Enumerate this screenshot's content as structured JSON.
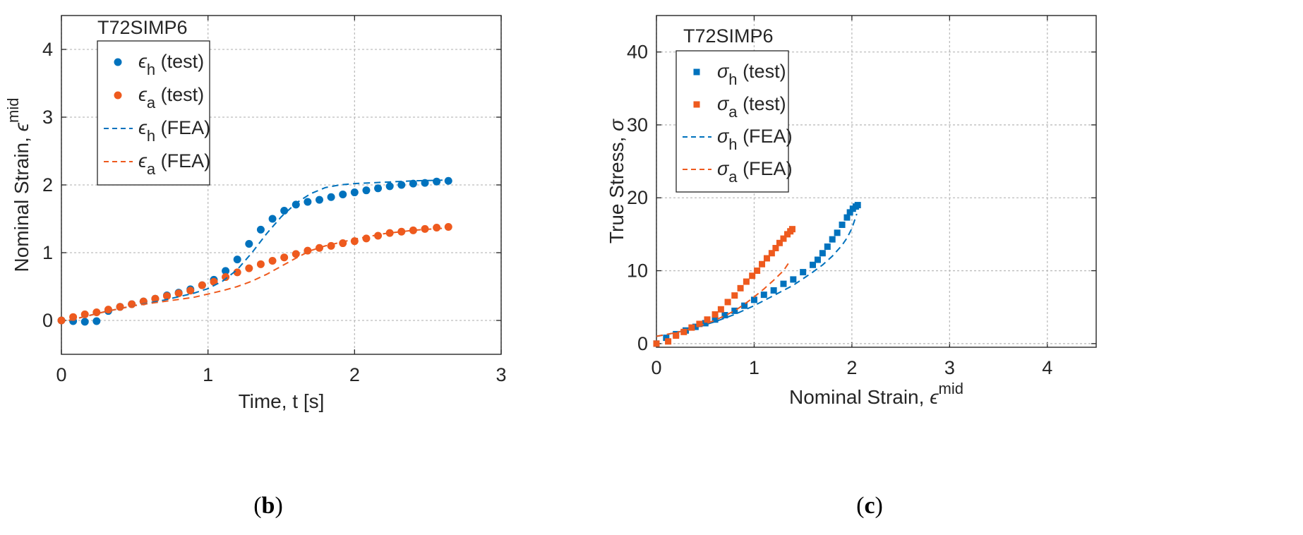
{
  "chart_data": [
    {
      "type": "scatter",
      "panel": "b",
      "caption": {
        "open": "(",
        "letter": "b",
        "close": ")"
      },
      "title": "T72SIMP6",
      "xlabel": "Time, t [s]",
      "ylabel": {
        "main": "Nominal Strain, ",
        "sym": "ϵ",
        "sup": "mid"
      },
      "xlim": [
        0,
        3
      ],
      "ylim": [
        -0.5,
        4.5
      ],
      "xticks": [
        0,
        1,
        2,
        3
      ],
      "yticks": [
        0,
        1,
        2,
        3,
        4
      ],
      "grid": true,
      "legend_position": "top-left",
      "series": [
        {
          "name": "ϵ_h (test)",
          "sym": "ϵ",
          "sub": "h",
          "tag": "(test)",
          "kind": "circle",
          "color": "#0072BD",
          "x": [
            0.0,
            0.08,
            0.16,
            0.24,
            0.32,
            0.4,
            0.48,
            0.56,
            0.64,
            0.72,
            0.8,
            0.88,
            0.96,
            1.04,
            1.12,
            1.2,
            1.28,
            1.36,
            1.44,
            1.52,
            1.6,
            1.68,
            1.76,
            1.84,
            1.92,
            2.0,
            2.08,
            2.16,
            2.24,
            2.32,
            2.4,
            2.48,
            2.56,
            2.64
          ],
          "y": [
            0.0,
            -0.01,
            -0.02,
            -0.01,
            0.14,
            0.2,
            0.24,
            0.28,
            0.32,
            0.37,
            0.41,
            0.46,
            0.52,
            0.6,
            0.73,
            0.9,
            1.13,
            1.34,
            1.5,
            1.62,
            1.71,
            1.75,
            1.78,
            1.82,
            1.86,
            1.89,
            1.92,
            1.95,
            1.98,
            2.0,
            2.02,
            2.03,
            2.05,
            2.06
          ]
        },
        {
          "name": "ϵ_a (test)",
          "sym": "ϵ",
          "sub": "a",
          "tag": "(test)",
          "kind": "circle",
          "color": "#EE5A1E",
          "x": [
            0.0,
            0.08,
            0.16,
            0.24,
            0.32,
            0.4,
            0.48,
            0.56,
            0.64,
            0.72,
            0.8,
            0.88,
            0.96,
            1.04,
            1.12,
            1.2,
            1.28,
            1.36,
            1.44,
            1.52,
            1.6,
            1.68,
            1.76,
            1.84,
            1.92,
            2.0,
            2.08,
            2.16,
            2.24,
            2.32,
            2.4,
            2.48,
            2.56,
            2.64
          ],
          "y": [
            0.0,
            0.05,
            0.09,
            0.12,
            0.16,
            0.2,
            0.24,
            0.28,
            0.32,
            0.36,
            0.4,
            0.44,
            0.52,
            0.57,
            0.64,
            0.71,
            0.77,
            0.83,
            0.88,
            0.93,
            0.98,
            1.03,
            1.07,
            1.1,
            1.14,
            1.17,
            1.21,
            1.25,
            1.29,
            1.31,
            1.33,
            1.35,
            1.37,
            1.38
          ]
        },
        {
          "name": "ϵ_h (FEA)",
          "sym": "ϵ",
          "sub": "h",
          "tag": "(FEA)",
          "kind": "dashed",
          "color": "#0072BD",
          "x": [
            0.05,
            0.3,
            0.5,
            0.7,
            0.9,
            1.0,
            1.1,
            1.2,
            1.3,
            1.4,
            1.5,
            1.6,
            1.7,
            1.8,
            1.9,
            2.0,
            2.2,
            2.4,
            2.6
          ],
          "y": [
            0.0,
            0.13,
            0.22,
            0.3,
            0.4,
            0.47,
            0.58,
            0.75,
            1.0,
            1.28,
            1.53,
            1.73,
            1.87,
            1.96,
            2.0,
            2.02,
            2.04,
            2.06,
            2.07
          ]
        },
        {
          "name": "ϵ_a (FEA)",
          "sym": "ϵ",
          "sub": "a",
          "tag": "(FEA)",
          "kind": "dashed",
          "color": "#EE5A1E",
          "x": [
            0.05,
            0.3,
            0.5,
            0.7,
            0.9,
            1.0,
            1.1,
            1.2,
            1.3,
            1.4,
            1.5,
            1.6,
            1.7,
            1.8,
            1.9,
            2.0,
            2.2,
            2.4,
            2.6
          ],
          "y": [
            0.0,
            0.13,
            0.22,
            0.28,
            0.34,
            0.39,
            0.44,
            0.5,
            0.58,
            0.68,
            0.8,
            0.92,
            1.03,
            1.1,
            1.15,
            1.2,
            1.28,
            1.33,
            1.36
          ]
        }
      ]
    },
    {
      "type": "scatter",
      "panel": "c",
      "caption": {
        "open": "(",
        "letter": "c",
        "close": ")"
      },
      "title": "T72SIMP6",
      "xlabel": {
        "main": "Nominal Strain, ",
        "sym": "ϵ",
        "sup": "mid"
      },
      "ylabel": {
        "main": "True Stress, ",
        "sym": "σ"
      },
      "xlim": [
        0,
        4.5
      ],
      "ylim": [
        -0.5,
        45
      ],
      "xticks": [
        0,
        1,
        2,
        3,
        4
      ],
      "yticks": [
        0,
        10,
        20,
        30,
        40
      ],
      "grid": true,
      "legend_position": "top-left",
      "series": [
        {
          "name": "σ_h (test)",
          "sym": "σ",
          "sub": "h",
          "tag": "(test)",
          "kind": "square",
          "color": "#0072BD",
          "x": [
            0.0,
            0.1,
            0.2,
            0.3,
            0.4,
            0.5,
            0.6,
            0.7,
            0.8,
            0.9,
            1.0,
            1.1,
            1.2,
            1.3,
            1.4,
            1.5,
            1.6,
            1.65,
            1.7,
            1.75,
            1.8,
            1.85,
            1.9,
            1.95,
            1.98,
            2.01,
            2.04,
            2.06
          ],
          "y": [
            0.0,
            0.8,
            1.3,
            1.8,
            2.3,
            2.8,
            3.3,
            3.9,
            4.5,
            5.2,
            6.0,
            6.7,
            7.3,
            8.2,
            8.8,
            9.8,
            10.8,
            11.5,
            12.4,
            13.3,
            14.3,
            15.2,
            16.3,
            17.3,
            18.0,
            18.5,
            18.8,
            19.0
          ]
        },
        {
          "name": "σ_a (test)",
          "sym": "σ",
          "sub": "a",
          "tag": "(test)",
          "kind": "square",
          "color": "#EE5A1E",
          "x": [
            0.0,
            0.12,
            0.2,
            0.28,
            0.36,
            0.44,
            0.52,
            0.6,
            0.66,
            0.73,
            0.8,
            0.86,
            0.92,
            0.98,
            1.03,
            1.08,
            1.13,
            1.18,
            1.22,
            1.26,
            1.3,
            1.34,
            1.37,
            1.39
          ],
          "y": [
            0.0,
            0.3,
            1.1,
            1.6,
            2.2,
            2.7,
            3.3,
            4.0,
            4.7,
            5.7,
            6.6,
            7.6,
            8.5,
            9.3,
            10.0,
            10.9,
            11.7,
            12.4,
            13.1,
            13.8,
            14.4,
            15.0,
            15.4,
            15.7
          ]
        },
        {
          "name": "σ_h (FEA)",
          "sym": "σ",
          "sub": "h",
          "tag": "(FEA)",
          "kind": "dashed",
          "color": "#0072BD",
          "x": [
            0.0,
            0.2,
            0.4,
            0.6,
            0.8,
            1.0,
            1.2,
            1.4,
            1.6,
            1.7,
            1.8,
            1.9,
            1.95,
            2.0,
            2.05
          ],
          "y": [
            1.0,
            1.5,
            2.2,
            3.0,
            4.0,
            5.2,
            6.6,
            8.0,
            9.8,
            10.8,
            12.0,
            13.5,
            14.5,
            15.8,
            17.8
          ]
        },
        {
          "name": "σ_a (FEA)",
          "sym": "σ",
          "sub": "a",
          "tag": "(FEA)",
          "kind": "dashed",
          "color": "#EE5A1E",
          "x": [
            0.0,
            0.2,
            0.4,
            0.6,
            0.8,
            0.9,
            1.0,
            1.1,
            1.2,
            1.3,
            1.35
          ],
          "y": [
            1.0,
            1.5,
            2.2,
            3.2,
            4.5,
            5.4,
            6.4,
            7.5,
            8.7,
            10.0,
            11.0
          ]
        }
      ]
    }
  ]
}
